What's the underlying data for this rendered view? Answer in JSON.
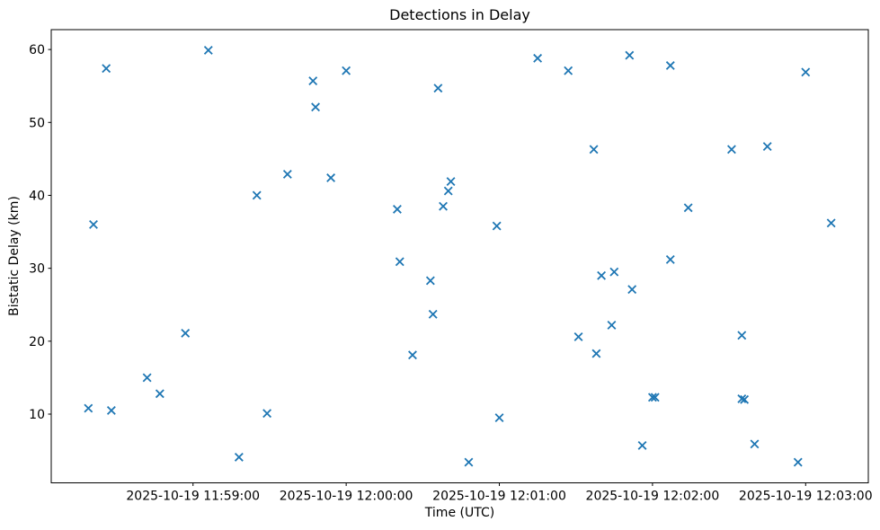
{
  "chart_data": {
    "type": "scatter",
    "title": "Detections in Delay",
    "xlabel": "Time (UTC)",
    "ylabel": "Bistatic Delay (km)",
    "date": "2025-10-19",
    "marker_glyph": "x",
    "marker_color": "#1f77b4",
    "axis_color": "#000000",
    "text_color": "#000000",
    "background_color": "#ffffff",
    "grid": false,
    "legend": null,
    "x_ticks": [
      {
        "time": "11:59:00",
        "label": "2025-10-19 11:59:00"
      },
      {
        "time": "12:00:00",
        "label": "2025-10-19 12:00:00"
      },
      {
        "time": "12:01:00",
        "label": "2025-10-19 12:01:00"
      },
      {
        "time": "12:02:00",
        "label": "2025-10-19 12:02:00"
      },
      {
        "time": "12:03:00",
        "label": "2025-10-19 12:03:00"
      }
    ],
    "y_ticks": [
      10,
      20,
      30,
      40,
      50,
      60
    ],
    "x_range_approx": [
      "11:58:05",
      "12:03:25"
    ],
    "y_range_approx": [
      0.6,
      62.7
    ],
    "points": [
      [
        "11:58:19",
        10.8
      ],
      [
        "11:58:21",
        36.0
      ],
      [
        "11:58:26",
        57.4
      ],
      [
        "11:58:28",
        10.5
      ],
      [
        "11:58:42",
        15.0
      ],
      [
        "11:58:47",
        12.8
      ],
      [
        "11:58:57",
        21.1
      ],
      [
        "11:59:06",
        59.9
      ],
      [
        "11:59:18",
        4.1
      ],
      [
        "11:59:25",
        40.0
      ],
      [
        "11:59:29",
        10.1
      ],
      [
        "11:59:37",
        42.9
      ],
      [
        "11:59:47",
        55.7
      ],
      [
        "11:59:48",
        52.1
      ],
      [
        "11:59:54",
        42.4
      ],
      [
        "12:00:00",
        57.1
      ],
      [
        "12:00:20",
        38.1
      ],
      [
        "12:00:21",
        30.9
      ],
      [
        "12:00:26",
        18.1
      ],
      [
        "12:00:33",
        28.3
      ],
      [
        "12:00:34",
        23.7
      ],
      [
        "12:00:36",
        54.7
      ],
      [
        "12:00:38",
        38.5
      ],
      [
        "12:00:40",
        40.6
      ],
      [
        "12:00:41",
        41.9
      ],
      [
        "12:00:48",
        3.4
      ],
      [
        "12:00:59",
        35.8
      ],
      [
        "12:01:00",
        9.5
      ],
      [
        "12:01:15",
        58.8
      ],
      [
        "12:01:27",
        57.1
      ],
      [
        "12:01:31",
        20.6
      ],
      [
        "12:01:37",
        46.3
      ],
      [
        "12:01:38",
        18.3
      ],
      [
        "12:01:40",
        29.0
      ],
      [
        "12:01:44",
        22.2
      ],
      [
        "12:01:45",
        29.5
      ],
      [
        "12:01:51",
        59.2
      ],
      [
        "12:01:52",
        27.1
      ],
      [
        "12:01:56",
        5.7
      ],
      [
        "12:02:00",
        12.3
      ],
      [
        "12:02:01",
        12.3
      ],
      [
        "12:02:07",
        57.8
      ],
      [
        "12:02:07",
        31.2
      ],
      [
        "12:02:14",
        38.3
      ],
      [
        "12:02:31",
        46.3
      ],
      [
        "12:02:35",
        20.8
      ],
      [
        "12:02:35",
        12.1
      ],
      [
        "12:02:36",
        12.0
      ],
      [
        "12:02:40",
        5.9
      ],
      [
        "12:02:45",
        46.7
      ],
      [
        "12:02:57",
        3.4
      ],
      [
        "12:03:00",
        56.9
      ],
      [
        "12:03:10",
        36.2
      ]
    ]
  }
}
